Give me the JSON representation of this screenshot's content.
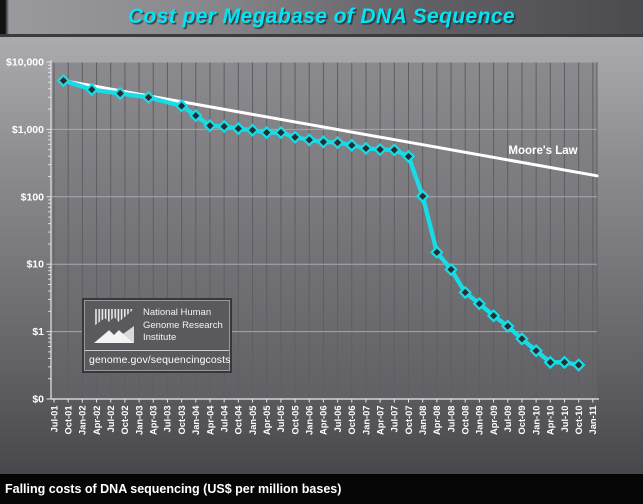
{
  "title": "Cost per Megabase of DNA Sequence",
  "caption": "Falling costs of DNA sequencing (US$ per million bases)",
  "logo_box": {
    "org_lines": [
      "National Human",
      "Genome Research",
      "Institute"
    ],
    "url": "genome.gov/sequencingcosts"
  },
  "colors": {
    "title_text": "#00e6f6",
    "series_line": "#17dce6",
    "marker_fill": "#2b2b2f",
    "moores_law_line": "#ffffff",
    "axis_text": "#ffffff",
    "grid_vertical": "#5e5e63",
    "grid_horizontal": "#a8a8ad",
    "axis_line": "#d4d4d8",
    "plot_bg_top": "#8b8b8f",
    "plot_bg_bottom": "#616165",
    "caption_bg": "#060606"
  },
  "chart_data": {
    "type": "line",
    "title": "Cost per Megabase of DNA Sequence",
    "y_scale": "log",
    "ylim": [
      0.1,
      10000
    ],
    "grid": "on",
    "legend_position": "none",
    "y_ticks": [
      {
        "label": "$10,000",
        "value": 10000
      },
      {
        "label": "$1,000",
        "value": 1000
      },
      {
        "label": "$100",
        "value": 100
      },
      {
        "label": "$10",
        "value": 10
      },
      {
        "label": "$1",
        "value": 1
      },
      {
        "label": "$0",
        "value": 0.1
      }
    ],
    "x_ticks": [
      "Jul-01",
      "Oct-01",
      "Jan-02",
      "Apr-02",
      "Jul-02",
      "Oct-02",
      "Jan-03",
      "Apr-03",
      "Jul-03",
      "Oct-03",
      "Jan-04",
      "Apr-04",
      "Jul-04",
      "Oct-04",
      "Jan-05",
      "Apr-05",
      "Jul-05",
      "Oct-05",
      "Jan-06",
      "Apr-06",
      "Jul-06",
      "Oct-06",
      "Jan-07",
      "Apr-07",
      "Jul-07",
      "Oct-07",
      "Jan-08",
      "Apr-08",
      "Jul-08",
      "Oct-08",
      "Jan-09",
      "Apr-09",
      "Jul-09",
      "Oct-09",
      "Jan-10",
      "Apr-10",
      "Jul-10",
      "Oct-10",
      "Jan-11"
    ],
    "series": [
      {
        "name": "Cost per megabase of DNA sequence (US$)",
        "color": "#17dce6",
        "dates": [
          "Sep-01",
          "Mar-02",
          "Sep-02",
          "Mar-03",
          "Oct-03",
          "Jan-04",
          "Apr-04",
          "Jul-04",
          "Oct-04",
          "Jan-05",
          "Apr-05",
          "Jul-05",
          "Oct-05",
          "Jan-06",
          "Apr-06",
          "Jul-06",
          "Oct-06",
          "Jan-07",
          "Apr-07",
          "Jul-07",
          "Oct-07",
          "Jan-08",
          "Apr-08",
          "Jul-08",
          "Oct-08",
          "Jan-09",
          "Apr-09",
          "Jul-09",
          "Oct-09",
          "Jan-10",
          "Apr-10",
          "Jul-10",
          "Oct-10"
        ],
        "values": [
          5292.39,
          3898.64,
          3413.8,
          2986.2,
          2230.98,
          1598.91,
          1135.7,
          1107.46,
          1028.85,
          974.16,
          897.76,
          898.9,
          766.73,
          699.2,
          651.81,
          636.41,
          581.92,
          522.71,
          502.61,
          495.96,
          397.09,
          102.13,
          15.03,
          8.36,
          3.81,
          2.59,
          1.72,
          1.2,
          0.78,
          0.52,
          0.35,
          0.35,
          0.32
        ]
      }
    ],
    "moores_law": {
      "label": "Moore's Law",
      "color": "#ffffff",
      "dates": [
        "Sep-01",
        "Jan-11"
      ],
      "values": [
        5292.39,
        210
      ]
    }
  }
}
